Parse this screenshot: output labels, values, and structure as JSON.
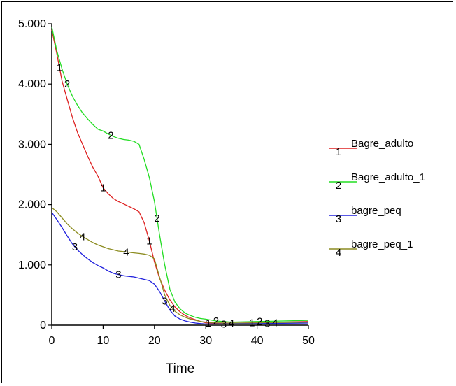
{
  "chart_data": {
    "type": "line",
    "xlabel": "Time",
    "ylabel": "",
    "xlim": [
      0,
      50
    ],
    "ylim": [
      0,
      5000
    ],
    "x_ticks": [
      0,
      10,
      20,
      30,
      40,
      50
    ],
    "y_ticks": [
      0,
      1000,
      2000,
      3000,
      4000,
      5000
    ],
    "y_tick_labels": [
      "0",
      "1.000",
      "2.000",
      "3.000",
      "4.000",
      "5.000"
    ],
    "grid": false,
    "legend_position": "right",
    "series": [
      {
        "name": "Bagre_adulto",
        "marker": "1",
        "color": "#dd2020",
        "x": [
          0,
          1,
          2,
          3,
          4,
          5,
          6,
          7,
          8,
          9,
          10,
          11,
          12,
          13,
          14,
          15,
          16,
          17,
          18,
          19,
          20,
          21,
          22,
          23,
          24,
          25,
          26,
          27,
          28,
          29,
          30,
          32,
          35,
          40,
          45,
          50
        ],
        "y": [
          4900,
          4500,
          4050,
          3750,
          3450,
          3200,
          3000,
          2800,
          2620,
          2470,
          2280,
          2180,
          2100,
          2050,
          2010,
          1970,
          1930,
          1880,
          1700,
          1400,
          1050,
          780,
          580,
          420,
          300,
          220,
          160,
          120,
          90,
          60,
          40,
          30,
          30,
          40,
          50,
          60
        ]
      },
      {
        "name": "Bagre_adulto_1",
        "marker": "2",
        "color": "#22dd22",
        "x": [
          0,
          1,
          2,
          3,
          4,
          5,
          6,
          7,
          8,
          9,
          10,
          11,
          12,
          13,
          14,
          15,
          16,
          17,
          18,
          19,
          20,
          21,
          22,
          23,
          24,
          25,
          26,
          27,
          28,
          29,
          30,
          32,
          35,
          40,
          45,
          50
        ],
        "y": [
          4950,
          4550,
          4250,
          4000,
          3800,
          3650,
          3520,
          3420,
          3330,
          3250,
          3220,
          3170,
          3130,
          3100,
          3080,
          3070,
          3050,
          3000,
          2750,
          2450,
          2050,
          1500,
          1000,
          600,
          380,
          270,
          200,
          160,
          130,
          110,
          100,
          70,
          50,
          60,
          70,
          80
        ]
      },
      {
        "name": "bagre_peq",
        "marker": "3",
        "color": "#2020dd",
        "x": [
          0,
          1,
          2,
          3,
          4,
          5,
          6,
          7,
          8,
          9,
          10,
          11,
          12,
          13,
          14,
          15,
          16,
          17,
          18,
          19,
          20,
          21,
          22,
          23,
          24,
          25,
          26,
          27,
          28,
          29,
          30,
          32,
          35,
          40,
          45,
          50
        ],
        "y": [
          1870,
          1750,
          1620,
          1480,
          1350,
          1250,
          1170,
          1100,
          1040,
          990,
          950,
          900,
          860,
          840,
          820,
          810,
          800,
          780,
          760,
          740,
          680,
          560,
          400,
          250,
          150,
          100,
          70,
          50,
          35,
          25,
          20,
          20,
          20,
          25,
          30,
          35
        ]
      },
      {
        "name": "bagre_peq_1",
        "marker": "4",
        "color": "#8c8c20",
        "x": [
          0,
          1,
          2,
          3,
          4,
          5,
          6,
          7,
          8,
          9,
          10,
          11,
          12,
          13,
          14,
          15,
          16,
          17,
          18,
          19,
          20,
          21,
          22,
          23,
          24,
          25,
          26,
          27,
          28,
          29,
          30,
          32,
          35,
          40,
          45,
          50
        ],
        "y": [
          1950,
          1880,
          1780,
          1680,
          1600,
          1530,
          1470,
          1420,
          1370,
          1330,
          1300,
          1270,
          1250,
          1230,
          1220,
          1210,
          1200,
          1190,
          1180,
          1160,
          1100,
          800,
          500,
          330,
          230,
          170,
          130,
          100,
          80,
          60,
          50,
          40,
          35,
          40,
          45,
          50
        ]
      }
    ]
  }
}
